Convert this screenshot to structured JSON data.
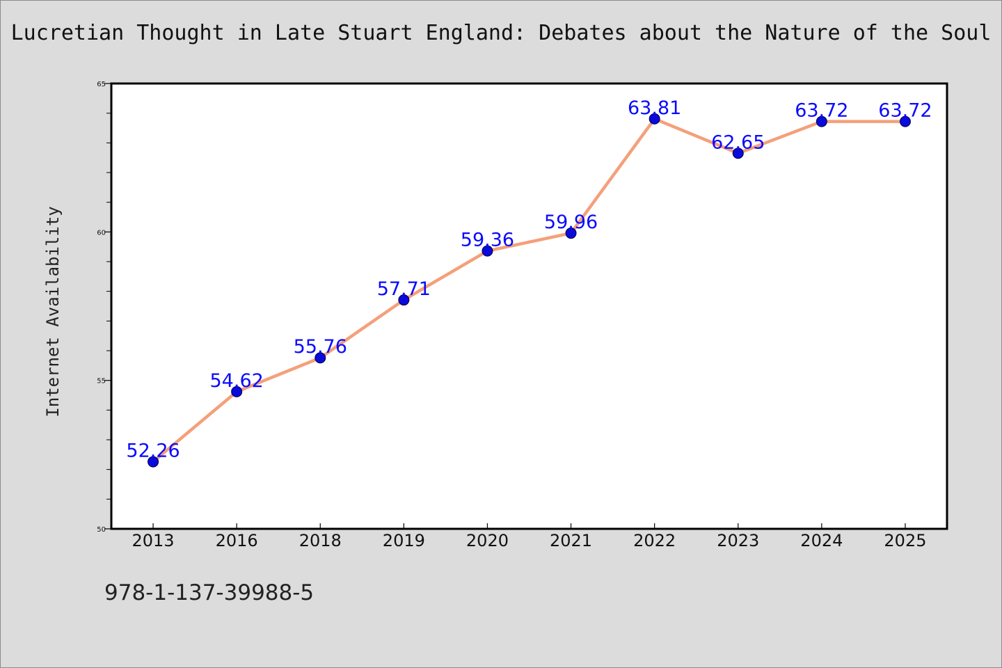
{
  "chart_data": {
    "type": "line",
    "title": "Lucretian Thought in Late Stuart England: Debates about the Nature of the Soul",
    "xlabel": "",
    "ylabel": "Internet Availability",
    "categories": [
      "2013",
      "2016",
      "2018",
      "2019",
      "2020",
      "2021",
      "2022",
      "2023",
      "2024",
      "2025"
    ],
    "series": [
      {
        "values": [
          52.26,
          54.62,
          55.76,
          57.71,
          59.36,
          59.96,
          63.81,
          62.65,
          63.72,
          63.72
        ]
      }
    ],
    "data_labels": [
      "52.26",
      "54.62",
      "55.76",
      "57.71",
      "59.36",
      "59.96",
      "63.81",
      "62.65",
      "63.72",
      "63.72"
    ],
    "ylim": [
      50,
      65
    ],
    "yticks": [
      "50",
      "55",
      "60",
      "65"
    ],
    "grid": false,
    "line_color": "#f4a07a",
    "marker_color": "#0a0adc",
    "label_color": "#0a0aff"
  },
  "footer": {
    "isbn": "978-1-137-39988-5"
  }
}
